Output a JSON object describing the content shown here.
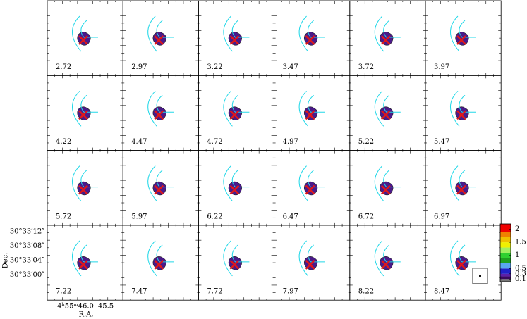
{
  "channels": {
    "labels": [
      2.72,
      2.97,
      3.22,
      3.47,
      3.72,
      3.97,
      4.22,
      4.47,
      4.72,
      4.97,
      5.22,
      5.47,
      5.72,
      5.97,
      6.22,
      6.47,
      6.72,
      6.97,
      7.22,
      7.47,
      7.72,
      7.97,
      8.22,
      8.47
    ],
    "columns": 6
  },
  "axes": {
    "y_title": "Dec.",
    "x_title": "R.A.",
    "y_ticks": [
      "30°33′12″",
      "30°33′08″",
      "30°33′04″",
      "30°33′00″"
    ],
    "x_ticks": [
      "4ʰ55ᵐ46.0",
      "45.5"
    ]
  },
  "colorbar": {
    "clim": [
      0,
      2.2
    ],
    "bands": [
      {
        "from": 0,
        "color": "#777777"
      },
      {
        "from": 0.1,
        "color": "#3a0a5e"
      },
      {
        "from": 0.2,
        "color": "#5b1fa8"
      },
      {
        "from": 0.3,
        "color": "#2020c8"
      },
      {
        "from": 0.5,
        "color": "#5aa8f0"
      },
      {
        "from": 0.7,
        "color": "#20a020"
      },
      {
        "from": 0.9,
        "color": "#30d030"
      },
      {
        "from": 1.1,
        "color": "#a0f060"
      },
      {
        "from": 1.3,
        "color": "#f0f000"
      },
      {
        "from": 1.5,
        "color": "#f0c000"
      },
      {
        "from": 1.7,
        "color": "#f08000"
      },
      {
        "from": 1.9,
        "color": "#f00000"
      }
    ],
    "ticks": [
      2,
      1.5,
      1,
      0.5,
      0.3,
      0.1
    ]
  }
}
